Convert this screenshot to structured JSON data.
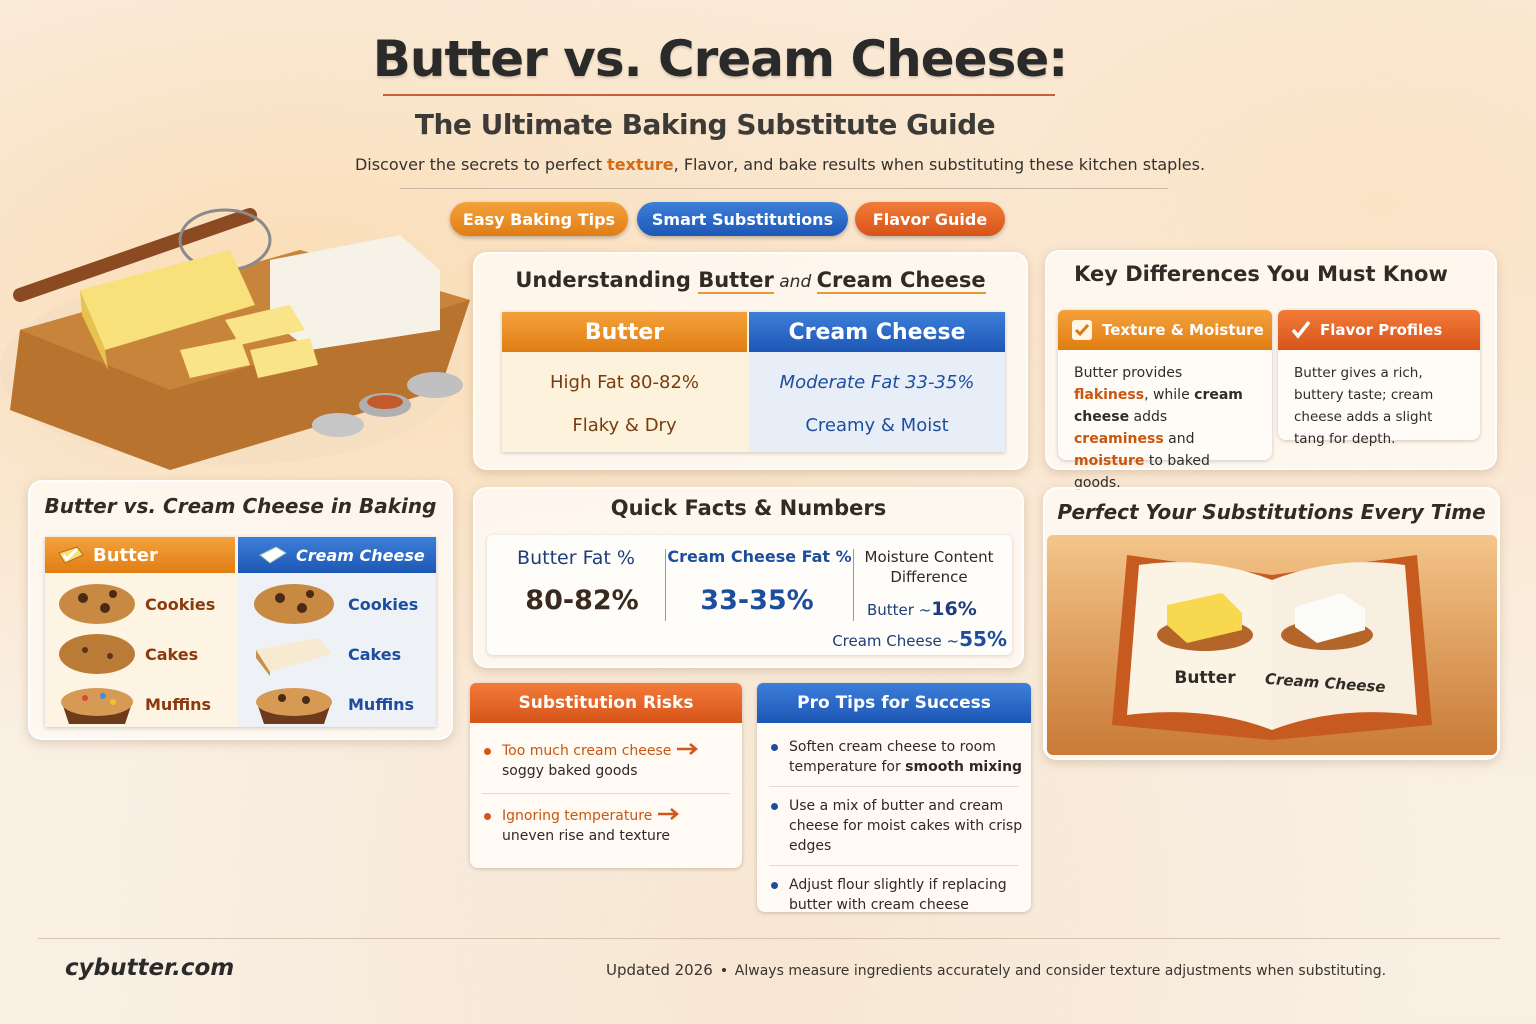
{
  "header": {
    "title": "Butter vs. Cream Cheese:",
    "subtitle": "The Ultimate Baking Substitute Guide",
    "intro": [
      "Discover the secrets to perfect ",
      "texture",
      ", Flavor, and bake results when substituting these kitchen staples."
    ]
  },
  "tags": [
    "Easy Baking Tips",
    "Smart Substitutions",
    "Flavor Guide"
  ],
  "understanding": {
    "title": [
      "Understanding ",
      "Butter",
      " and ",
      "Cream Cheese"
    ],
    "columns": [
      {
        "name": "Butter",
        "rows": [
          "High Fat 80-82%",
          "Flaky & Dry"
        ]
      },
      {
        "name": "Cream Cheese",
        "rows": [
          "Moderate Fat 33-35%",
          "Creamy & Moist"
        ]
      }
    ]
  },
  "key_differences": {
    "title": "Key Differences You Must Know",
    "cards": [
      {
        "title": "Texture & Moisture",
        "text": [
          "Butter provides ",
          "flakiness",
          ", while ",
          "cream cheese",
          " adds ",
          "creaminess",
          " and ",
          "moisture",
          " to baked goods."
        ]
      },
      {
        "title": "Flavor Profiles",
        "text": [
          "Butter gives a rich, buttery taste; cream cheese adds a slight tang for depth."
        ]
      }
    ]
  },
  "baking": {
    "title": "Butter vs. Cream Cheese in Baking",
    "columns": [
      {
        "name": "Butter",
        "items": [
          "Cookies",
          "Cakes",
          "Muffins"
        ]
      },
      {
        "name": "Cream Cheese",
        "items": [
          "Cookies",
          "Cakes",
          "Muffins"
        ]
      }
    ]
  },
  "quick_facts": {
    "title": "Quick Facts & Numbers",
    "facts": [
      {
        "label": "Butter Fat %",
        "value": "80-82%"
      },
      {
        "label": "Cream Cheese Fat %",
        "value": "33-35%"
      }
    ],
    "moisture": {
      "label": "Moisture Content Difference",
      "lines": [
        {
          "label": "Butter ~",
          "value": "16%"
        },
        {
          "label": "Cream Cheese ~",
          "value": "55%"
        }
      ]
    }
  },
  "risks": {
    "title": "Substitution Risks",
    "items": [
      {
        "cause": "Too much cream cheese",
        "effect": "soggy baked goods"
      },
      {
        "cause": "Ignoring temperature",
        "effect": "uneven rise and texture"
      }
    ]
  },
  "tips": {
    "title": "Pro Tips for Success",
    "items": [
      [
        "Soften cream cheese to room temperature for ",
        "smooth mixing"
      ],
      [
        "Use a mix of butter and cream cheese for moist cakes with crisp edges"
      ],
      [
        "Adjust flour slightly if replacing butter with cream cheese"
      ]
    ]
  },
  "perfect": {
    "title": "Perfect Your Substitutions Every Time",
    "labels": [
      "Butter",
      "Cream Cheese"
    ]
  },
  "footer": {
    "site": "cybutter.com",
    "updated": "Updated 2026",
    "note": "Always measure ingredients accurately and consider texture adjustments when substituting."
  }
}
